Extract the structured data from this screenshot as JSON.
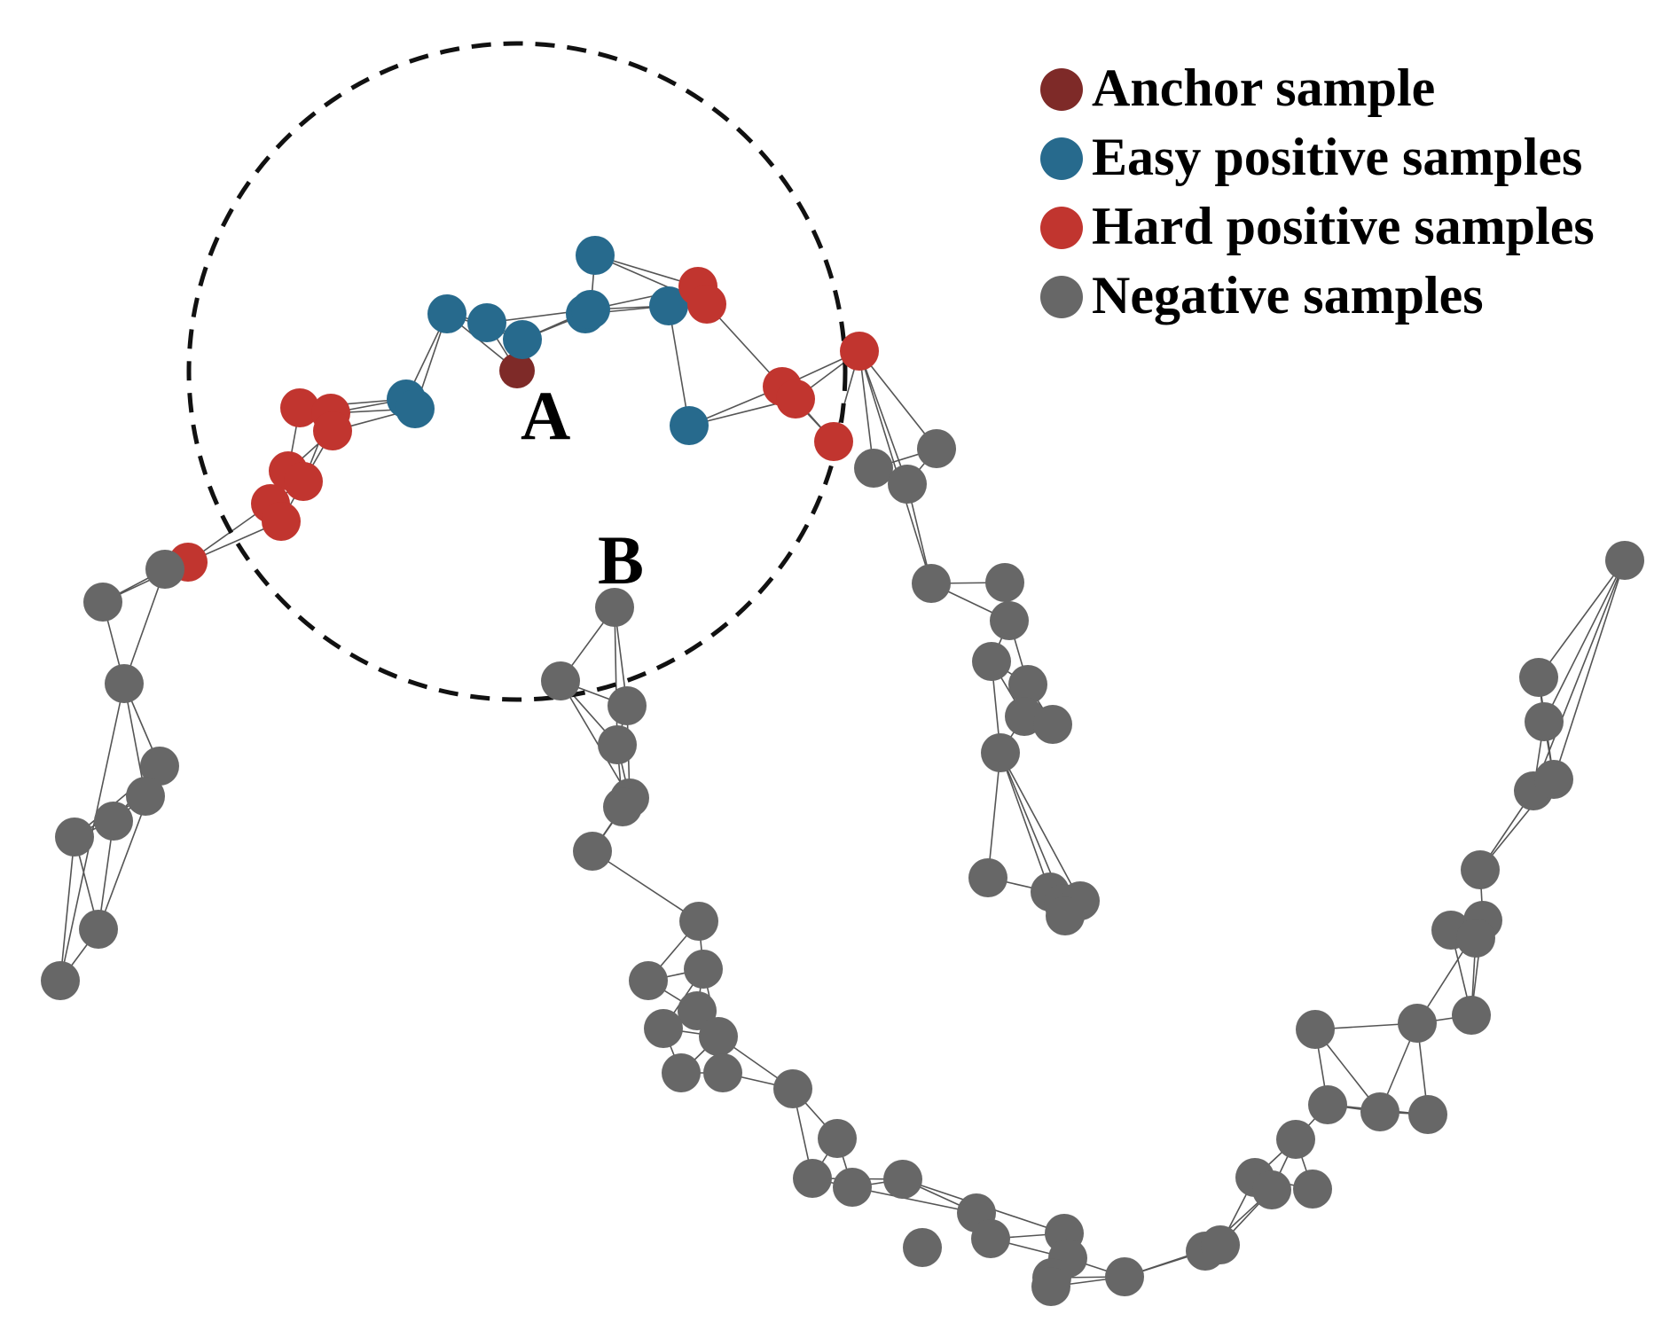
{
  "colors": {
    "anchor": "#7e2a28",
    "easy": "#276a8d",
    "hard": "#c1352f",
    "negative": "#676767",
    "edge": "#555555"
  },
  "labels": {
    "a": "A",
    "b": "B"
  },
  "legend": [
    {
      "label": "Anchor sample",
      "kind": "anchor"
    },
    {
      "label": "Easy positive samples",
      "kind": "easy"
    },
    {
      "label": "Hard positive samples",
      "kind": "hard"
    },
    {
      "label": "Negative samples",
      "kind": "negative"
    }
  ]
}
